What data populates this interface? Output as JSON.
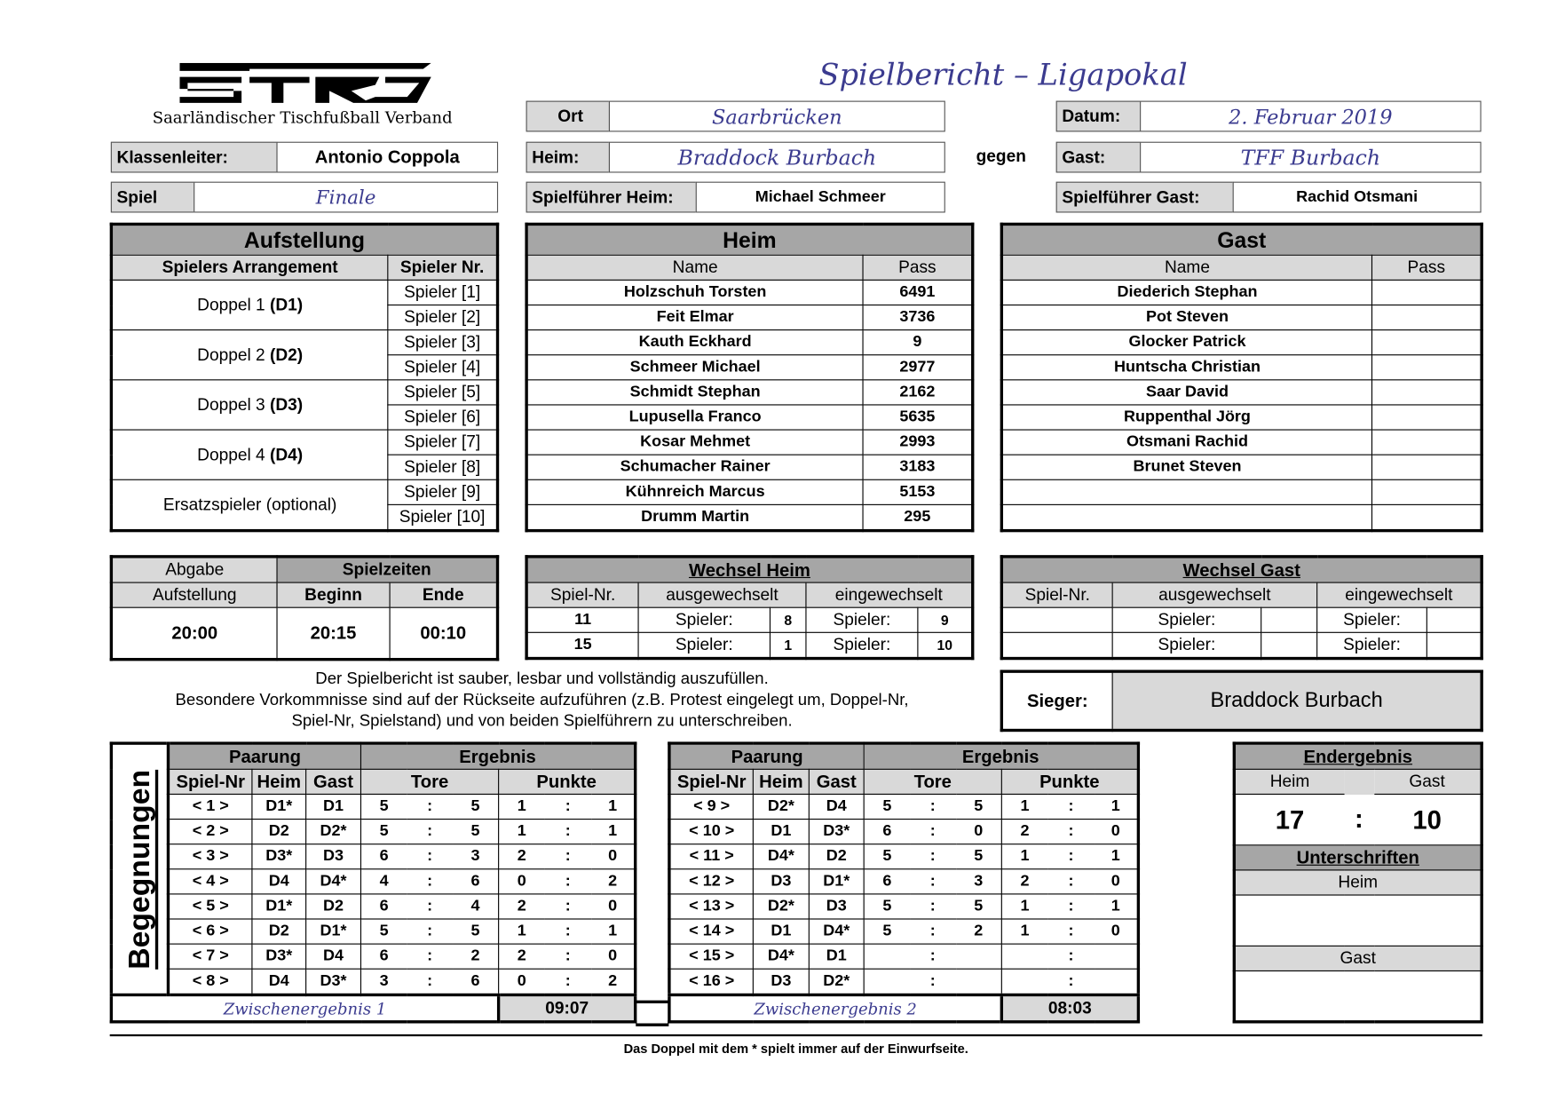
{
  "header": {
    "logo_text": "STFV",
    "org": "Saarländischer Tischfußball Verband",
    "title": "Spielbericht – Ligapokal"
  },
  "info": {
    "ort_label": "Ort",
    "ort": "Saarbrücken",
    "datum_label": "Datum:",
    "datum": "2. Februar 2019",
    "klassenleiter_label": "Klassenleiter:",
    "klassenleiter": "Antonio Coppola",
    "heim_label": "Heim:",
    "heim": "Braddock Burbach",
    "gegen": "gegen",
    "gast_label": "Gast:",
    "gast": "TFF Burbach",
    "spiel_label": "Spiel",
    "spiel": "Finale",
    "sf_heim_label": "Spielführer Heim:",
    "sf_heim": "Michael Schmeer",
    "sf_gast_label": "Spielführer Gast:",
    "sf_gast": "Rachid Otsmani"
  },
  "aufstellung": {
    "title": "Aufstellung",
    "col1": "Spielers Arrangement",
    "col2": "Spieler Nr.",
    "groups": [
      {
        "label": "Doppel 1",
        "code": "(D1)",
        "players": [
          "Spieler [1]",
          "Spieler [2]"
        ]
      },
      {
        "label": "Doppel 2",
        "code": "(D2)",
        "players": [
          "Spieler [3]",
          "Spieler [4]"
        ]
      },
      {
        "label": "Doppel 3",
        "code": "(D3)",
        "players": [
          "Spieler [5]",
          "Spieler [6]"
        ]
      },
      {
        "label": "Doppel 4",
        "code": "(D4)",
        "players": [
          "Spieler [7]",
          "Spieler [8]"
        ]
      },
      {
        "label": "Ersatzspieler (optional)",
        "code": "",
        "players": [
          "Spieler [9]",
          "Spieler [10]"
        ]
      }
    ]
  },
  "heim_team": {
    "title": "Heim",
    "col1": "Name",
    "col2": "Pass",
    "players": [
      {
        "name": "Holzschuh Torsten",
        "pass": "6491"
      },
      {
        "name": "Feit Elmar",
        "pass": "3736"
      },
      {
        "name": "Kauth Eckhard",
        "pass": "9"
      },
      {
        "name": "Schmeer Michael",
        "pass": "2977"
      },
      {
        "name": "Schmidt Stephan",
        "pass": "2162"
      },
      {
        "name": "Lupusella Franco",
        "pass": "5635"
      },
      {
        "name": "Kosar Mehmet",
        "pass": "2993"
      },
      {
        "name": "Schumacher Rainer",
        "pass": "3183"
      },
      {
        "name": "Kühnreich Marcus",
        "pass": "5153"
      },
      {
        "name": "Drumm Martin",
        "pass": "295"
      }
    ]
  },
  "gast_team": {
    "title": "Gast",
    "col1": "Name",
    "col2": "Pass",
    "players": [
      {
        "name": "Diederich Stephan",
        "pass": ""
      },
      {
        "name": "Pot Steven",
        "pass": ""
      },
      {
        "name": "Glocker Patrick",
        "pass": ""
      },
      {
        "name": "Huntscha Christian",
        "pass": ""
      },
      {
        "name": "Saar David",
        "pass": ""
      },
      {
        "name": "Ruppenthal Jörg",
        "pass": ""
      },
      {
        "name": "Otsmani Rachid",
        "pass": ""
      },
      {
        "name": "Brunet Steven",
        "pass": ""
      },
      {
        "name": "",
        "pass": ""
      },
      {
        "name": "",
        "pass": ""
      }
    ]
  },
  "zeiten": {
    "abgabe1": "Abgabe",
    "abgabe2": "Aufstellung",
    "spielzeiten": "Spielzeiten",
    "beginn_label": "Beginn",
    "ende_label": "Ende",
    "abgabe": "20:00",
    "beginn": "20:15",
    "ende": "00:10"
  },
  "wechsel_heim": {
    "title": "Wechsel Heim",
    "cols": [
      "Spiel-Nr.",
      "ausgewechselt",
      "eingewechselt"
    ],
    "spieler_label": "Spieler:",
    "rows": [
      {
        "spiel": "11",
        "aus": "8",
        "ein": "9"
      },
      {
        "spiel": "15",
        "aus": "1",
        "ein": "10"
      }
    ]
  },
  "wechsel_gast": {
    "title": "Wechsel Gast",
    "cols": [
      "Spiel-Nr.",
      "ausgewechselt",
      "eingewechselt"
    ],
    "spieler_label": "Spieler:",
    "rows": [
      {
        "spiel": "",
        "aus": "",
        "ein": ""
      },
      {
        "spiel": "",
        "aus": "",
        "ein": ""
      }
    ]
  },
  "notes": [
    "Der Spielbericht ist sauber, lesbar und vollständig auszufüllen.",
    "Besondere Vorkommnisse sind auf der Rückseite aufzuführen (z.B. Protest eingelegt um, Doppel-Nr,",
    "Spiel-Nr, Spielstand) und von beiden Spielführern zu unterschreiben."
  ],
  "sieger": {
    "label": "Sieger:",
    "value": "Braddock Burbach"
  },
  "begegnungen": {
    "title": "Begegnungen",
    "paarung": "Paarung",
    "ergebnis": "Ergebnis",
    "cols": [
      "Spiel-Nr",
      "Heim",
      "Gast",
      "Tore",
      "Punkte"
    ],
    "block1": {
      "zwischen_label": "Zwischenergebnis 1",
      "zwischen": "09:07",
      "games": [
        {
          "nr": "< 1 >",
          "h": "D1*",
          "g": "D1",
          "th": "5",
          "tg": "5",
          "ph": "1",
          "pg": "1"
        },
        {
          "nr": "< 2 >",
          "h": "D2",
          "g": "D2*",
          "th": "5",
          "tg": "5",
          "ph": "1",
          "pg": "1"
        },
        {
          "nr": "< 3 >",
          "h": "D3*",
          "g": "D3",
          "th": "6",
          "tg": "3",
          "ph": "2",
          "pg": "0"
        },
        {
          "nr": "< 4 >",
          "h": "D4",
          "g": "D4*",
          "th": "4",
          "tg": "6",
          "ph": "0",
          "pg": "2"
        },
        {
          "nr": "< 5 >",
          "h": "D1*",
          "g": "D2",
          "th": "6",
          "tg": "4",
          "ph": "2",
          "pg": "0"
        },
        {
          "nr": "< 6 >",
          "h": "D2",
          "g": "D1*",
          "th": "5",
          "tg": "5",
          "ph": "1",
          "pg": "1"
        },
        {
          "nr": "< 7 >",
          "h": "D3*",
          "g": "D4",
          "th": "6",
          "tg": "2",
          "ph": "2",
          "pg": "0"
        },
        {
          "nr": "< 8 >",
          "h": "D4",
          "g": "D3*",
          "th": "3",
          "tg": "6",
          "ph": "0",
          "pg": "2"
        }
      ]
    },
    "block2": {
      "zwischen_label": "Zwischenergebnis 2",
      "zwischen": "08:03",
      "games": [
        {
          "nr": "< 9 >",
          "h": "D2*",
          "g": "D4",
          "th": "5",
          "tg": "5",
          "ph": "1",
          "pg": "1"
        },
        {
          "nr": "< 10 >",
          "h": "D1",
          "g": "D3*",
          "th": "6",
          "tg": "0",
          "ph": "2",
          "pg": "0"
        },
        {
          "nr": "< 11 >",
          "h": "D4*",
          "g": "D2",
          "th": "5",
          "tg": "5",
          "ph": "1",
          "pg": "1"
        },
        {
          "nr": "< 12 >",
          "h": "D3",
          "g": "D1*",
          "th": "6",
          "tg": "3",
          "ph": "2",
          "pg": "0"
        },
        {
          "nr": "< 13 >",
          "h": "D2*",
          "g": "D3",
          "th": "5",
          "tg": "5",
          "ph": "1",
          "pg": "1"
        },
        {
          "nr": "< 14 >",
          "h": "D1",
          "g": "D4*",
          "th": "5",
          "tg": "2",
          "ph": "1",
          "pg": "0"
        },
        {
          "nr": "< 15 >",
          "h": "D4*",
          "g": "D1",
          "th": "",
          "tg": "",
          "ph": "",
          "pg": ""
        },
        {
          "nr": "< 16 >",
          "h": "D3",
          "g": "D2*",
          "th": "",
          "tg": "",
          "ph": "",
          "pg": ""
        }
      ]
    }
  },
  "endergebnis": {
    "title": "Endergebnis",
    "heim_label": "Heim",
    "gast_label": "Gast",
    "heim": "17",
    "gast": "10",
    "unterschriften": "Unterschriften",
    "sig_heim": "Heim",
    "sig_gast": "Gast"
  },
  "footer": "Das Doppel mit dem * spielt immer auf der Einwurfseite."
}
